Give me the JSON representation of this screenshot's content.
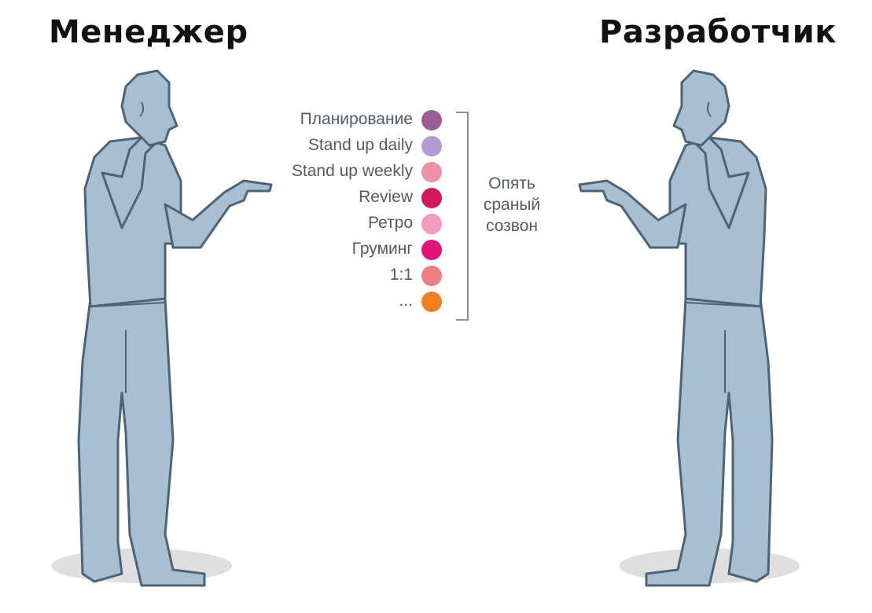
{
  "titles": {
    "left": "Менеджер",
    "right": "Разработчик"
  },
  "legend": [
    {
      "label": "Планирование",
      "color": "#9b5c95"
    },
    {
      "label": "Stand up daily",
      "color": "#b49bd1"
    },
    {
      "label": "Stand up weekly",
      "color": "#f08fa8"
    },
    {
      "label": "Review",
      "color": "#d4185e"
    },
    {
      "label": "Ретро",
      "color": "#f29ac0"
    },
    {
      "label": "Груминг",
      "color": "#e0157a"
    },
    {
      "label": "1:1",
      "color": "#ee7d84"
    },
    {
      "label": "...",
      "color": "#f07f22"
    }
  ],
  "bracket_text": "Опять сраный созвон",
  "colors": {
    "figure_fill": "#a7bfd1",
    "figure_stroke": "#4e6476",
    "text": "#555b63"
  }
}
